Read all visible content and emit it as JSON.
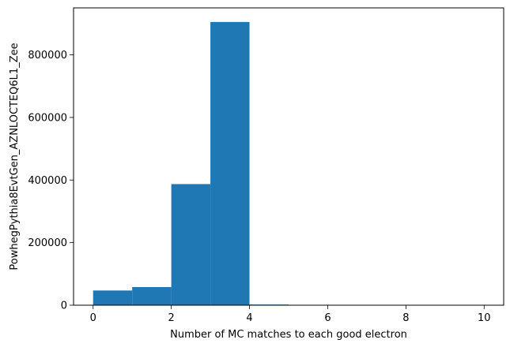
{
  "chart_data": {
    "type": "bar",
    "subtype": "histogram",
    "bins": [
      {
        "x0": 0,
        "x1": 1,
        "count": 47000
      },
      {
        "x0": 1,
        "x1": 2,
        "count": 58000
      },
      {
        "x0": 2,
        "x1": 3,
        "count": 387000
      },
      {
        "x0": 3,
        "x1": 4,
        "count": 905000
      },
      {
        "x0": 4,
        "x1": 5,
        "count": 2000
      },
      {
        "x0": 5,
        "x1": 6,
        "count": 0
      },
      {
        "x0": 6,
        "x1": 7,
        "count": 0
      },
      {
        "x0": 7,
        "x1": 8,
        "count": 0
      },
      {
        "x0": 8,
        "x1": 9,
        "count": 0
      },
      {
        "x0": 9,
        "x1": 10,
        "count": 0
      }
    ],
    "xlabel": "Number of MC matches to each good electron",
    "ylabel": "PowhegPythia8EvtGen_AZNLOCTEQ6L1_Zee",
    "xlim": [
      -0.5,
      10.5
    ],
    "ylim": [
      0,
      950000
    ],
    "xticks": [
      0,
      2,
      4,
      6,
      8,
      10
    ],
    "yticks": [
      0,
      200000,
      400000,
      600000,
      800000
    ],
    "bar_color": "#1f77b4",
    "grid": false,
    "legend": "none"
  }
}
